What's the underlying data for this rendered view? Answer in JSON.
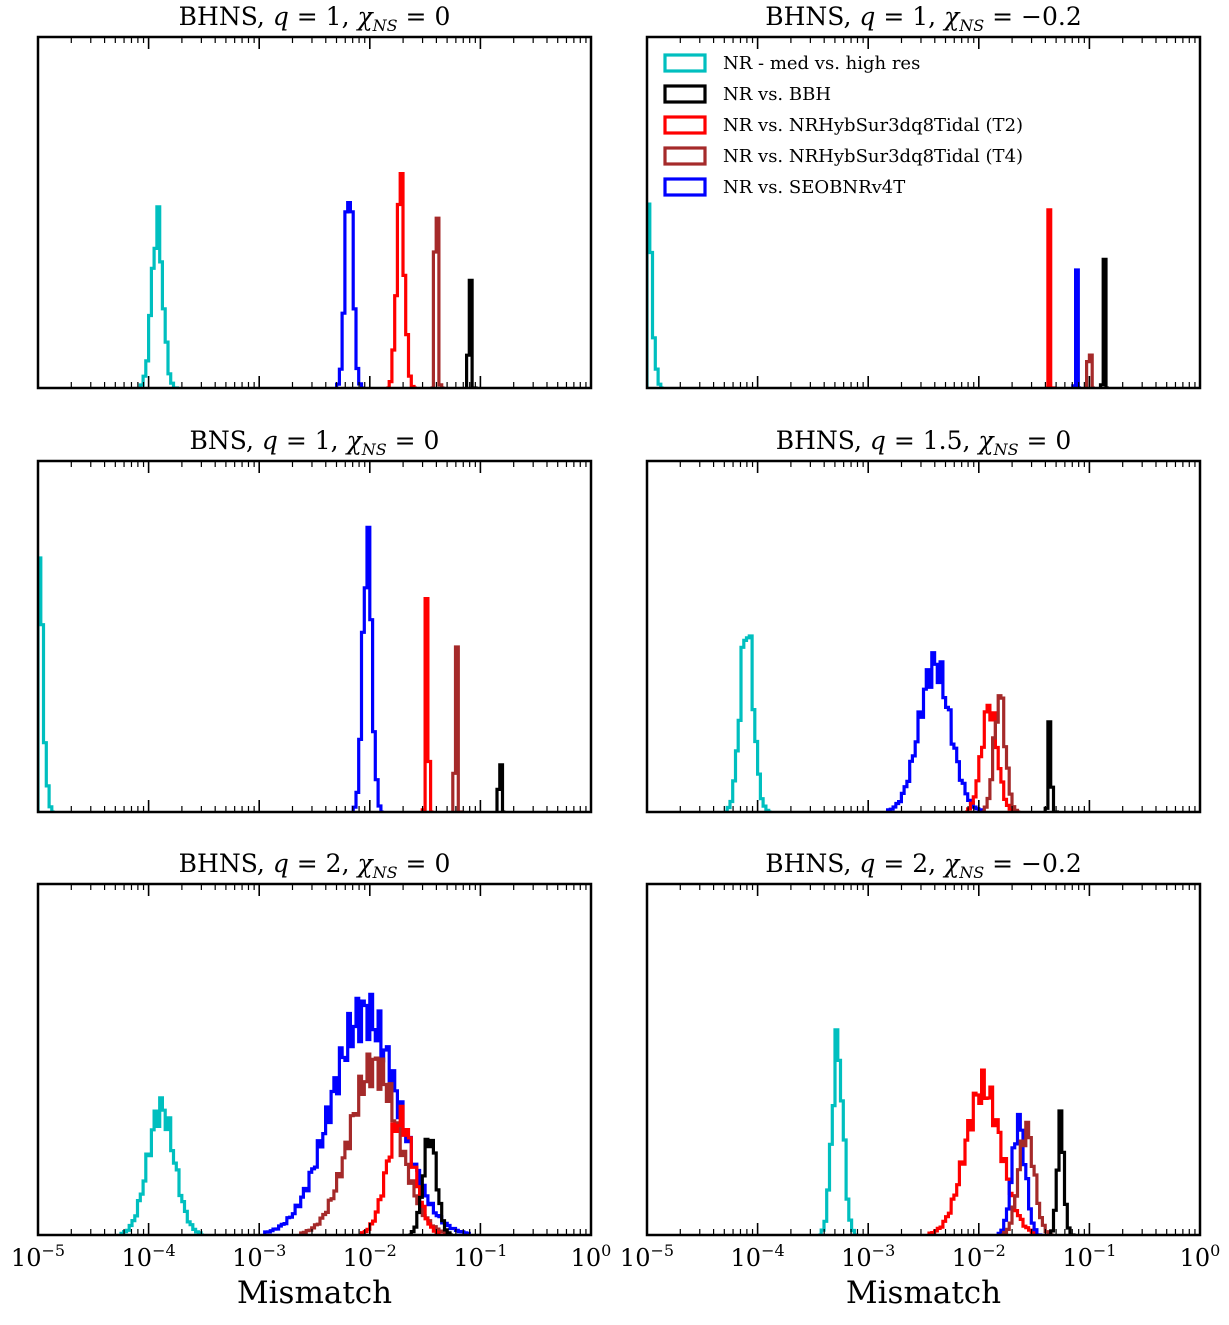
{
  "figure": {
    "xlabel": "Mismatch"
  },
  "legend": {
    "panel": 1,
    "entries": [
      {
        "series": "medhigh",
        "label": "NR - med vs. high res",
        "color": "#00bfbf"
      },
      {
        "series": "bbh",
        "label": "NR vs. BBH",
        "color": "#000000"
      },
      {
        "series": "t2",
        "label": "NR vs. NRHybSur3dq8Tidal (T2)",
        "color": "#ff0000"
      },
      {
        "series": "t4",
        "label": "NR vs. NRHybSur3dq8Tidal (T4)",
        "color": "#a52a2a"
      },
      {
        "series": "seob",
        "label": "NR vs. SEOBNRv4T",
        "color": "#0000ff"
      }
    ]
  },
  "chart_data": [
    {
      "type": "histogram",
      "title_parts": {
        "system": "BHNS",
        "q": "1",
        "chi": "0"
      },
      "xscale": "log",
      "xlim": [
        1e-05,
        1
      ],
      "xlabel": "",
      "yticks": "none",
      "series": [
        {
          "key": "medhigh",
          "color": "#00bfbf",
          "peak": 0.00012,
          "width": 0.05,
          "height": 0.47
        },
        {
          "key": "seob",
          "color": "#0000ff",
          "peak": 0.0065,
          "width": 0.035,
          "height": 0.6
        },
        {
          "key": "t2",
          "color": "#ff0000",
          "peak": 0.019,
          "width": 0.035,
          "height": 0.58
        },
        {
          "key": "t4",
          "color": "#a52a2a",
          "peak": 0.04,
          "width": 0.012,
          "height": 0.73
        },
        {
          "key": "bbh",
          "color": "#000000",
          "peak": 0.08,
          "width": 0.008,
          "height": 0.59
        }
      ]
    },
    {
      "type": "histogram",
      "title_parts": {
        "system": "BHNS",
        "q": "1",
        "chi": "−0.2"
      },
      "xscale": "log",
      "xlim": [
        1e-05,
        1
      ],
      "xlabel": "",
      "yticks": "none",
      "series": [
        {
          "key": "medhigh",
          "color": "#00bfbf",
          "peak": 1e-05,
          "width": 0.04,
          "height": 0.55,
          "onesided": true
        },
        {
          "key": "t2",
          "color": "#ff0000",
          "peak": 0.043,
          "width": 0.006,
          "height": 0.7
        },
        {
          "key": "seob",
          "color": "#0000ff",
          "peak": 0.076,
          "width": 0.006,
          "height": 0.67
        },
        {
          "key": "t4",
          "color": "#a52a2a",
          "peak": 0.1,
          "width": 0.006,
          "height": 0.74
        },
        {
          "key": "bbh",
          "color": "#000000",
          "peak": 0.135,
          "width": 0.006,
          "height": 0.72
        }
      ]
    },
    {
      "type": "histogram",
      "title_parts": {
        "system": "BNS",
        "q": "1",
        "chi": "0"
      },
      "xscale": "log",
      "xlim": [
        1e-05,
        1
      ],
      "xlabel": "",
      "yticks": "none",
      "series": [
        {
          "key": "medhigh",
          "color": "#00bfbf",
          "peak": 1e-05,
          "width": 0.04,
          "height": 0.76,
          "onesided": true
        },
        {
          "key": "seob",
          "color": "#0000ff",
          "peak": 0.0095,
          "width": 0.04,
          "height": 0.78
        },
        {
          "key": "t2",
          "color": "#ff0000",
          "peak": 0.033,
          "width": 0.01,
          "height": 0.78
        },
        {
          "key": "t4",
          "color": "#a52a2a",
          "peak": 0.06,
          "width": 0.008,
          "height": 0.84
        },
        {
          "key": "bbh",
          "color": "#000000",
          "peak": 0.15,
          "width": 0.006,
          "height": 0.79
        }
      ]
    },
    {
      "type": "histogram",
      "title_parts": {
        "system": "BHNS",
        "q": "1.5",
        "chi": "0"
      },
      "xscale": "log",
      "xlim": [
        1e-05,
        1
      ],
      "xlabel": "",
      "yticks": "none",
      "series": [
        {
          "key": "medhigh",
          "color": "#00bfbf",
          "peak": 8e-05,
          "width": 0.06,
          "height": 0.53
        },
        {
          "key": "seob",
          "color": "#0000ff",
          "peak": 0.004,
          "width": 0.14,
          "height": 0.42
        },
        {
          "key": "t2",
          "color": "#ff0000",
          "peak": 0.0125,
          "width": 0.07,
          "height": 0.3
        },
        {
          "key": "t4",
          "color": "#a52a2a",
          "peak": 0.0155,
          "width": 0.05,
          "height": 0.33
        },
        {
          "key": "bbh",
          "color": "#000000",
          "peak": 0.044,
          "width": 0.012,
          "height": 0.28
        }
      ]
    },
    {
      "type": "histogram",
      "title_parts": {
        "system": "BHNS",
        "q": "2",
        "chi": "0"
      },
      "xscale": "log",
      "xlim": [
        1e-05,
        1
      ],
      "xlabel": "Mismatch",
      "yticks": "none",
      "series": [
        {
          "key": "medhigh",
          "color": "#00bfbf",
          "peak": 0.00013,
          "width": 0.12,
          "height": 0.36
        },
        {
          "key": "seob",
          "color": "#0000ff",
          "peak": 0.009,
          "width": 0.3,
          "height": 0.63
        },
        {
          "key": "t4",
          "color": "#a52a2a",
          "peak": 0.011,
          "width": 0.22,
          "height": 0.48
        },
        {
          "key": "t2",
          "color": "#ff0000",
          "peak": 0.019,
          "width": 0.12,
          "height": 0.33
        },
        {
          "key": "bbh",
          "color": "#000000",
          "peak": 0.035,
          "width": 0.06,
          "height": 0.28
        }
      ]
    },
    {
      "type": "histogram",
      "title_parts": {
        "system": "BHNS",
        "q": "2",
        "chi": "−0.2"
      },
      "xscale": "log",
      "xlim": [
        1e-05,
        1
      ],
      "xlabel": "Mismatch",
      "yticks": "none",
      "series": [
        {
          "key": "medhigh",
          "color": "#00bfbf",
          "peak": 0.00053,
          "width": 0.05,
          "height": 0.54
        },
        {
          "key": "t2",
          "color": "#ff0000",
          "peak": 0.011,
          "width": 0.16,
          "height": 0.42
        },
        {
          "key": "seob",
          "color": "#0000ff",
          "peak": 0.023,
          "width": 0.06,
          "height": 0.32
        },
        {
          "key": "t4",
          "color": "#a52a2a",
          "peak": 0.027,
          "width": 0.07,
          "height": 0.3
        },
        {
          "key": "bbh",
          "color": "#000000",
          "peak": 0.055,
          "width": 0.03,
          "height": 0.32
        }
      ]
    }
  ]
}
